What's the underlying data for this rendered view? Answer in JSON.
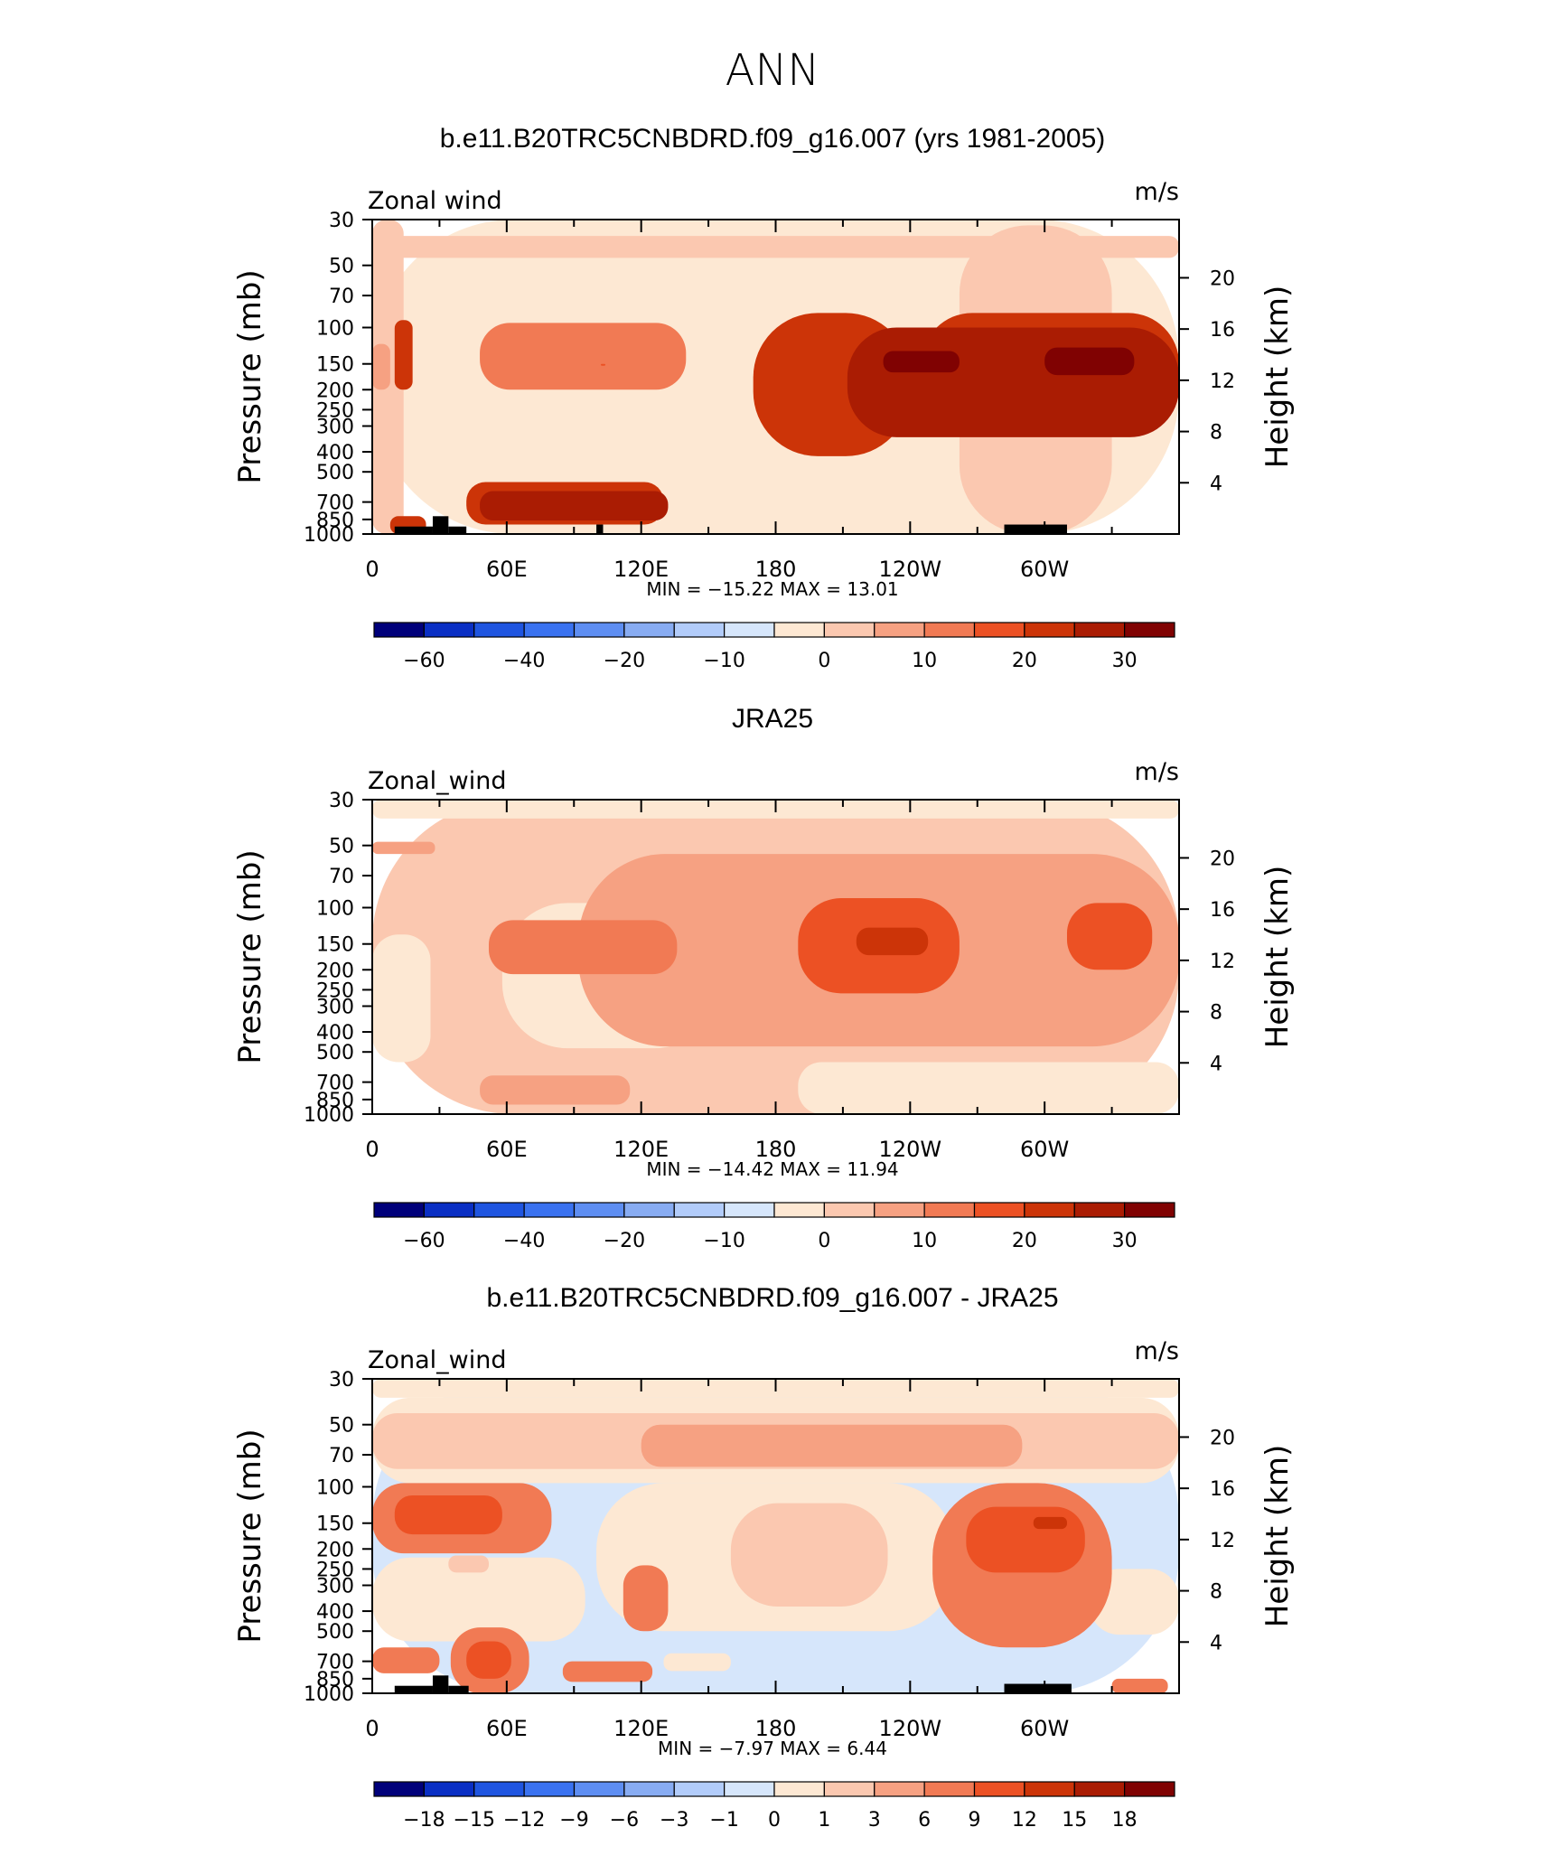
{
  "figure": {
    "title": "ANN"
  },
  "chart_data": [
    {
      "type": "heatmap",
      "title": "b.e11.B20TRC5CNBDRD.f09_g16.007 (yrs 1981-2005)",
      "variable": "Zonal wind",
      "units": "m/s",
      "ylabel": "Pressure (mb)",
      "ylabel_right": "Height (km)",
      "x_tick_labels": [
        "0",
        "60E",
        "120E",
        "180",
        "120W",
        "60W"
      ],
      "x_ticks_deg": [
        0,
        60,
        120,
        180,
        240,
        300
      ],
      "xlim_deg": [
        0,
        360
      ],
      "y_tick_labels": [
        "30",
        "50",
        "70",
        "100",
        "150",
        "200",
        "250",
        "300",
        "400",
        "500",
        "700",
        "850",
        "1000"
      ],
      "y_ticks_mb": [
        30,
        50,
        70,
        100,
        150,
        200,
        250,
        300,
        400,
        500,
        700,
        850,
        1000
      ],
      "ylim_mb": [
        1000,
        30
      ],
      "y_scale": "log",
      "height_ticks_km": [
        4,
        8,
        12,
        16,
        20
      ],
      "min_max_text": "MIN =  −15.22   MAX =   13.01",
      "min": -15.22,
      "max": 13.01,
      "colorbar_labels": [
        "−60",
        "−40",
        "−20",
        "−10",
        "0",
        "10",
        "20",
        "30"
      ],
      "colorbar_levels": [
        -70,
        -60,
        -50,
        -40,
        -30,
        -20,
        -15,
        -10,
        -5,
        0,
        5,
        10,
        15,
        20,
        25,
        30
      ],
      "colorbar_label_positions": [
        1,
        3,
        5,
        7,
        9,
        11,
        13,
        15
      ],
      "contour_levels": [
        -10,
        -5,
        0,
        5,
        10
      ],
      "regions": [
        {
          "level": 0,
          "lon": [
            0,
            360
          ],
          "p_mb": [
            30,
            1000
          ]
        },
        {
          "level": 1,
          "lon": [
            0,
            14
          ],
          "p_mb": [
            30,
            1000
          ]
        },
        {
          "level": 1,
          "lon": [
            262,
            330
          ],
          "p_mb": [
            32,
            1000
          ]
        },
        {
          "level": 1,
          "lon": [
            0,
            360
          ],
          "p_mb": [
            36,
            46
          ]
        },
        {
          "level": 2,
          "lon": [
            0,
            8
          ],
          "p_mb": [
            120,
            200
          ]
        },
        {
          "level": 3,
          "lon": [
            48,
            140
          ],
          "p_mb": [
            95,
            200
          ]
        },
        {
          "level": 4,
          "lon": [
            102,
            104
          ],
          "p_mb": [
            150,
            153
          ]
        },
        {
          "level": 5,
          "lon": [
            10,
            18
          ],
          "p_mb": [
            92,
            200
          ]
        },
        {
          "level": 5,
          "lon": [
            170,
            240
          ],
          "p_mb": [
            85,
            420
          ]
        },
        {
          "level": 5,
          "lon": [
            245,
            360
          ],
          "p_mb": [
            85,
            300
          ]
        },
        {
          "level": 5,
          "lon": [
            42,
            130
          ],
          "p_mb": [
            560,
            900
          ]
        },
        {
          "level": 5,
          "lon": [
            8,
            24
          ],
          "p_mb": [
            820,
            1000
          ]
        },
        {
          "level": 6,
          "lon": [
            212,
            360
          ],
          "p_mb": [
            100,
            340
          ]
        },
        {
          "level": 6,
          "lon": [
            48,
            132
          ],
          "p_mb": [
            620,
            860
          ]
        },
        {
          "level": 7,
          "lon": [
            228,
            262
          ],
          "p_mb": [
            130,
            165
          ]
        },
        {
          "level": 7,
          "lon": [
            300,
            340
          ],
          "p_mb": [
            125,
            170
          ]
        }
      ],
      "topography": [
        {
          "lon": [
            10,
            27
          ],
          "p_mb": [
            920,
            1000
          ]
        },
        {
          "lon": [
            27,
            34
          ],
          "p_mb": [
            820,
            1000
          ]
        },
        {
          "lon": [
            34,
            42
          ],
          "p_mb": [
            920,
            1000
          ]
        },
        {
          "lon": [
            100,
            103
          ],
          "p_mb": [
            900,
            1000
          ]
        },
        {
          "lon": [
            282,
            310
          ],
          "p_mb": [
            900,
            1000
          ]
        }
      ]
    },
    {
      "type": "heatmap",
      "title": "JRA25",
      "variable": "Zonal_wind",
      "units": "m/s",
      "ylabel": "Pressure (mb)",
      "ylabel_right": "Height (km)",
      "x_tick_labels": [
        "0",
        "60E",
        "120E",
        "180",
        "120W",
        "60W"
      ],
      "x_ticks_deg": [
        0,
        60,
        120,
        180,
        240,
        300
      ],
      "xlim_deg": [
        0,
        360
      ],
      "y_tick_labels": [
        "30",
        "50",
        "70",
        "100",
        "150",
        "200",
        "250",
        "300",
        "400",
        "500",
        "700",
        "850",
        "1000"
      ],
      "y_ticks_mb": [
        30,
        50,
        70,
        100,
        150,
        200,
        250,
        300,
        400,
        500,
        700,
        850,
        1000
      ],
      "ylim_mb": [
        1000,
        30
      ],
      "y_scale": "log",
      "height_ticks_km": [
        4,
        8,
        12,
        16,
        20
      ],
      "min_max_text": "MIN =  −14.42   MAX =   11.94",
      "min": -14.42,
      "max": 11.94,
      "colorbar_labels": [
        "−60",
        "−40",
        "−20",
        "−10",
        "0",
        "10",
        "20",
        "30"
      ],
      "colorbar_levels": [
        -70,
        -60,
        -50,
        -40,
        -30,
        -20,
        -15,
        -10,
        -5,
        0,
        5,
        10,
        15,
        20,
        25,
        30
      ],
      "colorbar_label_positions": [
        1,
        3,
        5,
        7,
        9,
        11,
        13,
        15
      ],
      "contour_levels": [
        -10,
        -5,
        0,
        5,
        10
      ],
      "regions": [
        {
          "level": 1,
          "lon": [
            0,
            360
          ],
          "p_mb": [
            30,
            1000
          ]
        },
        {
          "level": 0,
          "lon": [
            0,
            360
          ],
          "p_mb": [
            30,
            37
          ]
        },
        {
          "level": 0,
          "lon": [
            0,
            26
          ],
          "p_mb": [
            135,
            560
          ]
        },
        {
          "level": 0,
          "lon": [
            58,
            155
          ],
          "p_mb": [
            95,
            480
          ]
        },
        {
          "level": 0,
          "lon": [
            190,
            360
          ],
          "p_mb": [
            560,
            1000
          ]
        },
        {
          "level": 2,
          "lon": [
            0,
            28
          ],
          "p_mb": [
            48,
            55
          ]
        },
        {
          "level": 2,
          "lon": [
            92,
            360
          ],
          "p_mb": [
            55,
            470
          ]
        },
        {
          "level": 2,
          "lon": [
            48,
            115
          ],
          "p_mb": [
            650,
            900
          ]
        },
        {
          "level": 3,
          "lon": [
            52,
            136
          ],
          "p_mb": [
            115,
            210
          ]
        },
        {
          "level": 4,
          "lon": [
            190,
            262
          ],
          "p_mb": [
            90,
            260
          ]
        },
        {
          "level": 4,
          "lon": [
            310,
            348
          ],
          "p_mb": [
            95,
            200
          ]
        },
        {
          "level": 5,
          "lon": [
            216,
            248
          ],
          "p_mb": [
            125,
            170
          ]
        }
      ],
      "topography": []
    },
    {
      "type": "heatmap",
      "title": "b.e11.B20TRC5CNBDRD.f09_g16.007 - JRA25",
      "variable": "Zonal_wind",
      "units": "m/s",
      "ylabel": "Pressure (mb)",
      "ylabel_right": "Height (km)",
      "x_tick_labels": [
        "0",
        "60E",
        "120E",
        "180",
        "120W",
        "60W"
      ],
      "x_ticks_deg": [
        0,
        60,
        120,
        180,
        240,
        300
      ],
      "xlim_deg": [
        0,
        360
      ],
      "y_tick_labels": [
        "30",
        "50",
        "70",
        "100",
        "150",
        "200",
        "250",
        "300",
        "400",
        "500",
        "700",
        "850",
        "1000"
      ],
      "y_ticks_mb": [
        30,
        50,
        70,
        100,
        150,
        200,
        250,
        300,
        400,
        500,
        700,
        850,
        1000
      ],
      "ylim_mb": [
        1000,
        30
      ],
      "y_scale": "log",
      "height_ticks_km": [
        4,
        8,
        12,
        16,
        20
      ],
      "min_max_text": "MIN =   −7.97   MAX =    6.44",
      "min": -7.97,
      "max": 6.44,
      "colorbar_labels": [
        "−18",
        "−15",
        "−12",
        "−9",
        "−6",
        "−3",
        "−1",
        "0",
        "1",
        "3",
        "6",
        "9",
        "12",
        "15",
        "18"
      ],
      "colorbar_levels": [
        -21,
        -18,
        -15,
        -12,
        -9,
        -6,
        -3,
        -1,
        0,
        1,
        3,
        6,
        9,
        12,
        15,
        18
      ],
      "colorbar_label_positions": [
        1,
        2,
        3,
        4,
        5,
        6,
        7,
        8,
        9,
        10,
        11,
        12,
        13,
        14,
        15
      ],
      "contour_levels": [
        -6,
        -3,
        -1,
        1,
        3,
        6
      ],
      "regions": [
        {
          "level": 0,
          "lon": [
            0,
            360
          ],
          "p_mb": [
            30,
            1000
          ]
        },
        {
          "level": 1,
          "lon": [
            0,
            360
          ],
          "p_mb": [
            30,
            37
          ]
        },
        {
          "level": 1,
          "lon": [
            0,
            360
          ],
          "p_mb": [
            37,
            96
          ]
        },
        {
          "level": 2,
          "lon": [
            0,
            360
          ],
          "p_mb": [
            44,
            82
          ]
        },
        {
          "level": 3,
          "lon": [
            120,
            290
          ],
          "p_mb": [
            50,
            80
          ]
        },
        {
          "level": 1,
          "lon": [
            100,
            260
          ],
          "p_mb": [
            96,
            500
          ]
        },
        {
          "level": 2,
          "lon": [
            160,
            230
          ],
          "p_mb": [
            120,
            380
          ]
        },
        {
          "level": 1,
          "lon": [
            0,
            95
          ],
          "p_mb": [
            220,
            560
          ]
        },
        {
          "level": 2,
          "lon": [
            34,
            52
          ],
          "p_mb": [
            215,
            260
          ]
        },
        {
          "level": 1,
          "lon": [
            130,
            160
          ],
          "p_mb": [
            640,
            780
          ]
        },
        {
          "level": 1,
          "lon": [
            320,
            360
          ],
          "p_mb": [
            250,
            520
          ]
        },
        {
          "level": 4,
          "lon": [
            0,
            80
          ],
          "p_mb": [
            96,
            210
          ]
        },
        {
          "level": 5,
          "lon": [
            10,
            58
          ],
          "p_mb": [
            110,
            170
          ]
        },
        {
          "level": 4,
          "lon": [
            250,
            330
          ],
          "p_mb": [
            96,
            600
          ]
        },
        {
          "level": 5,
          "lon": [
            265,
            318
          ],
          "p_mb": [
            125,
            260
          ]
        },
        {
          "level": 6,
          "lon": [
            295,
            310
          ],
          "p_mb": [
            140,
            160
          ]
        },
        {
          "level": 4,
          "lon": [
            112,
            132
          ],
          "p_mb": [
            240,
            500
          ]
        },
        {
          "level": 4,
          "lon": [
            35,
            70
          ],
          "p_mb": [
            480,
            1000
          ]
        },
        {
          "level": 5,
          "lon": [
            42,
            62
          ],
          "p_mb": [
            560,
            850
          ]
        },
        {
          "level": 4,
          "lon": [
            0,
            30
          ],
          "p_mb": [
            600,
            800
          ]
        },
        {
          "level": 4,
          "lon": [
            85,
            125
          ],
          "p_mb": [
            700,
            880
          ]
        },
        {
          "level": 4,
          "lon": [
            330,
            355
          ],
          "p_mb": [
            850,
            1000
          ]
        }
      ],
      "topography": [
        {
          "lon": [
            10,
            27
          ],
          "p_mb": [
            920,
            1000
          ]
        },
        {
          "lon": [
            27,
            34
          ],
          "p_mb": [
            820,
            1000
          ]
        },
        {
          "lon": [
            34,
            43
          ],
          "p_mb": [
            920,
            1000
          ]
        },
        {
          "lon": [
            282,
            312
          ],
          "p_mb": [
            900,
            1000
          ]
        }
      ]
    }
  ],
  "palettes": {
    "main": [
      "#00007a",
      "#0a2fc4",
      "#1f55e0",
      "#3a72f0",
      "#5e8ef2",
      "#88acf2",
      "#b2ccfa",
      "#d6e6fb",
      "#fde8d3",
      "#fbc8b0",
      "#f6a182",
      "#f17a54",
      "#ec5124",
      "#cc3408",
      "#aa1c03",
      "#800202"
    ],
    "diff": [
      "#00007a",
      "#0a2fc4",
      "#1f55e0",
      "#3a72f0",
      "#5e8ef2",
      "#88acf2",
      "#b2ccfa",
      "#d6e6fb",
      "#fde8d3",
      "#fbc8b0",
      "#f6a182",
      "#f17a54",
      "#ec5124",
      "#cc3408",
      "#aa1c03",
      "#800202"
    ],
    "diff_offset": 7
  },
  "colors": {
    "topography": "#000000",
    "frame": "#000000"
  }
}
